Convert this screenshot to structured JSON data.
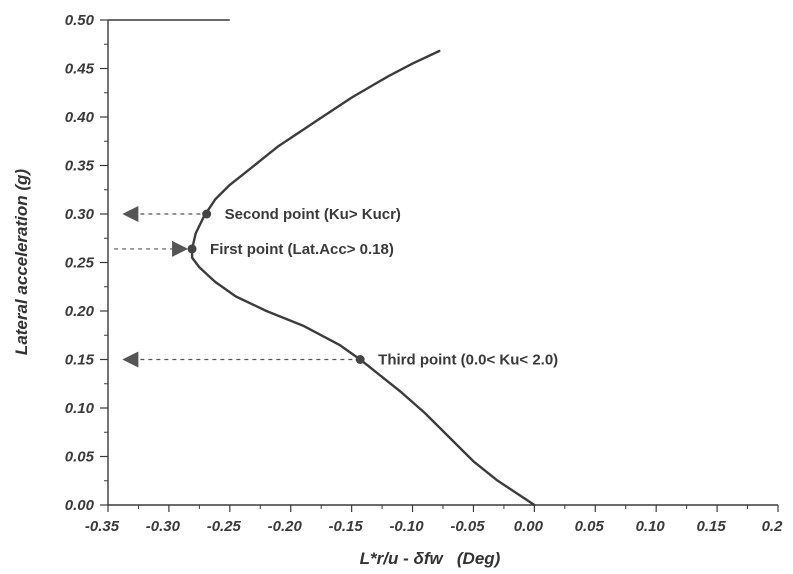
{
  "chart_data": {
    "type": "line",
    "xlabel": "L*r/u - δfw   (Deg)",
    "ylabel": "Lateral acceleration (g)",
    "xlim": [
      -0.35,
      0.2
    ],
    "ylim": [
      0.0,
      0.5
    ],
    "x_ticks": [
      "-0.35",
      "-0.30",
      "-0.25",
      "-0.20",
      "-0.15",
      "-0.10",
      "-0.05",
      "0.00",
      "0.05",
      "0.10",
      "0.15",
      "0.2"
    ],
    "y_ticks": [
      "0.00",
      "0.05",
      "0.10",
      "0.15",
      "0.20",
      "0.25",
      "0.30",
      "0.35",
      "0.40",
      "0.45",
      "0.50"
    ],
    "grid": false,
    "series": [
      {
        "x": [
          0.0,
          -0.012,
          -0.03,
          -0.05,
          -0.07,
          -0.09,
          -0.11,
          -0.13,
          -0.143,
          -0.16,
          -0.19,
          -0.22,
          -0.245,
          -0.262,
          -0.275,
          -0.281,
          -0.281,
          -0.278,
          -0.271,
          -0.262,
          -0.25,
          -0.235,
          -0.21,
          -0.18,
          -0.15,
          -0.12,
          -0.1,
          -0.078
        ],
        "y": [
          0.0,
          0.01,
          0.025,
          0.045,
          0.07,
          0.095,
          0.117,
          0.137,
          0.15,
          0.165,
          0.185,
          0.2,
          0.215,
          0.23,
          0.245,
          0.255,
          0.264,
          0.28,
          0.298,
          0.315,
          0.33,
          0.345,
          0.37,
          0.395,
          0.42,
          0.442,
          0.455,
          0.468
        ]
      }
    ],
    "annotations": [
      {
        "label": "Second point (Ku> Kucr)",
        "x": -0.269,
        "y": 0.3,
        "arrow": "left"
      },
      {
        "label": "First point (Lat.Acc> 0.18)",
        "x": -0.281,
        "y": 0.264,
        "arrow": "right"
      },
      {
        "label": "Third point (0.0< Ku< 2.0)",
        "x": -0.143,
        "y": 0.15,
        "arrow": "left"
      }
    ],
    "colors": {
      "curve": "#3c3c3c",
      "marker": "#444444",
      "arrow": "#555555",
      "axis": "#3a3a3a"
    }
  }
}
